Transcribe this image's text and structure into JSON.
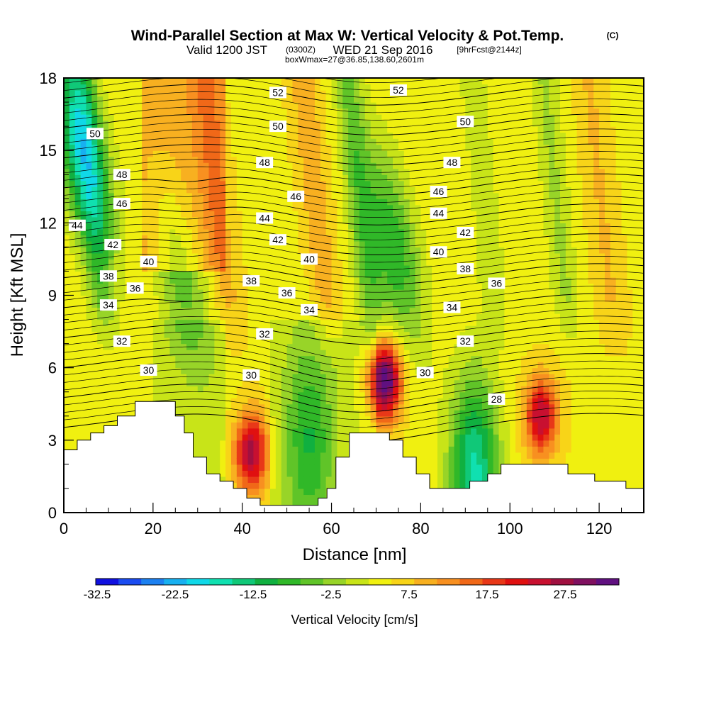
{
  "chart_data": {
    "type": "heatmap",
    "title": "Wind-Parallel Section at Max W: Vertical Velocity & Pot.Temp.",
    "title_mark": "(C)",
    "subtitle_valid": "Valid 1200 JST",
    "subtitle_utc": "(0300Z)",
    "subtitle_date": "WED 21 Sep 2016",
    "subtitle_fcst": "[9hrFcst@2144z]",
    "subtitle_box": "boxWmax=27@36.85,138.60,2601m",
    "xlabel": "Distance [nm]",
    "ylabel": "Height [Kft MSL]",
    "xlim": [
      0,
      130
    ],
    "ylim": [
      0,
      18
    ],
    "xticks": [
      "0",
      "20",
      "40",
      "60",
      "80",
      "100",
      "120"
    ],
    "yticks": [
      "0",
      "3",
      "6",
      "9",
      "12",
      "15",
      "18"
    ],
    "colorbar": {
      "label": "Vertical Velocity [cm/s]",
      "tick_labels": [
        "-32.5",
        "-22.5",
        "-12.5",
        "-2.5",
        "7.5",
        "17.5",
        "27.5"
      ],
      "colors": [
        "#1010e0",
        "#1a4cf0",
        "#1c80f0",
        "#18b0f0",
        "#10d8e8",
        "#10e0b0",
        "#10c878",
        "#10b040",
        "#30b828",
        "#60c428",
        "#98d428",
        "#c8e418",
        "#f0f010",
        "#f8d418",
        "#f8b020",
        "#f89020",
        "#f06818",
        "#e83818",
        "#e01010",
        "#c81030",
        "#a01040",
        "#801060",
        "#601080"
      ]
    },
    "vertical_velocity_features": [
      {
        "x": 4,
        "z": 15,
        "w": -20
      },
      {
        "x": 26,
        "z": 10,
        "w": -10
      },
      {
        "x": 42,
        "z": 2.5,
        "w": 24
      },
      {
        "x": 55,
        "z": 3,
        "w": -12
      },
      {
        "x": 72,
        "z": 5.5,
        "w": 32
      },
      {
        "x": 74,
        "z": 11,
        "w": -14
      },
      {
        "x": 92,
        "z": 1.5,
        "w": -22
      },
      {
        "x": 107,
        "z": 4,
        "w": 22
      }
    ],
    "theta_contours": [
      {
        "value": 28,
        "label": "28"
      },
      {
        "value": 30,
        "label": "30"
      },
      {
        "value": 32,
        "label": "32"
      },
      {
        "value": 34,
        "label": "34"
      },
      {
        "value": 36,
        "label": "36"
      },
      {
        "value": 38,
        "label": "38"
      },
      {
        "value": 40,
        "label": "40"
      },
      {
        "value": 42,
        "label": "42"
      },
      {
        "value": 44,
        "label": "44"
      },
      {
        "value": 46,
        "label": "46"
      },
      {
        "value": 48,
        "label": "48"
      },
      {
        "value": 50,
        "label": "50"
      },
      {
        "value": 52,
        "label": "52"
      }
    ],
    "contour_label_positions": [
      {
        "label": "52",
        "x": 48,
        "z": 17.4
      },
      {
        "label": "52",
        "x": 75,
        "z": 17.5
      },
      {
        "label": "50",
        "x": 7,
        "z": 15.7
      },
      {
        "label": "50",
        "x": 48,
        "z": 16.0
      },
      {
        "label": "50",
        "x": 90,
        "z": 16.2
      },
      {
        "label": "48",
        "x": 13,
        "z": 14.0
      },
      {
        "label": "48",
        "x": 45,
        "z": 14.5
      },
      {
        "label": "48",
        "x": 87,
        "z": 14.5
      },
      {
        "label": "46",
        "x": 13,
        "z": 12.8
      },
      {
        "label": "46",
        "x": 52,
        "z": 13.1
      },
      {
        "label": "46",
        "x": 84,
        "z": 13.3
      },
      {
        "label": "44",
        "x": 3,
        "z": 11.9
      },
      {
        "label": "44",
        "x": 45,
        "z": 12.2
      },
      {
        "label": "44",
        "x": 84,
        "z": 12.4
      },
      {
        "label": "42",
        "x": 11,
        "z": 11.1
      },
      {
        "label": "42",
        "x": 48,
        "z": 11.3
      },
      {
        "label": "42",
        "x": 90,
        "z": 11.6
      },
      {
        "label": "40",
        "x": 19,
        "z": 10.4
      },
      {
        "label": "40",
        "x": 55,
        "z": 10.5
      },
      {
        "label": "40",
        "x": 84,
        "z": 10.8
      },
      {
        "label": "38",
        "x": 10,
        "z": 9.8
      },
      {
        "label": "38",
        "x": 42,
        "z": 9.6
      },
      {
        "label": "38",
        "x": 90,
        "z": 10.1
      },
      {
        "label": "36",
        "x": 16,
        "z": 9.3
      },
      {
        "label": "36",
        "x": 50,
        "z": 9.1
      },
      {
        "label": "36",
        "x": 97,
        "z": 9.5
      },
      {
        "label": "34",
        "x": 10,
        "z": 8.6
      },
      {
        "label": "34",
        "x": 55,
        "z": 8.4
      },
      {
        "label": "34",
        "x": 87,
        "z": 8.5
      },
      {
        "label": "32",
        "x": 13,
        "z": 7.1
      },
      {
        "label": "32",
        "x": 45,
        "z": 7.4
      },
      {
        "label": "32",
        "x": 90,
        "z": 7.1
      },
      {
        "label": "30",
        "x": 19,
        "z": 5.9
      },
      {
        "label": "30",
        "x": 42,
        "z": 5.7
      },
      {
        "label": "30",
        "x": 81,
        "z": 5.8
      },
      {
        "label": "28",
        "x": 97,
        "z": 4.7
      }
    ],
    "terrain": [
      [
        0,
        2.6
      ],
      [
        3,
        2.6
      ],
      [
        3,
        3.0
      ],
      [
        6,
        3.0
      ],
      [
        6,
        3.3
      ],
      [
        9,
        3.3
      ],
      [
        9,
        3.6
      ],
      [
        12,
        3.6
      ],
      [
        12,
        4.0
      ],
      [
        16,
        4.0
      ],
      [
        16,
        4.6
      ],
      [
        25,
        4.6
      ],
      [
        25,
        4.0
      ],
      [
        27,
        4.0
      ],
      [
        27,
        3.3
      ],
      [
        29,
        3.3
      ],
      [
        29,
        2.3
      ],
      [
        32,
        2.3
      ],
      [
        32,
        1.6
      ],
      [
        35,
        1.6
      ],
      [
        35,
        1.3
      ],
      [
        38,
        1.3
      ],
      [
        38,
        1.0
      ],
      [
        41,
        1.0
      ],
      [
        41,
        0.6
      ],
      [
        44,
        0.6
      ],
      [
        44,
        0.3
      ],
      [
        57,
        0.3
      ],
      [
        57,
        0.6
      ],
      [
        59,
        0.6
      ],
      [
        59,
        1.0
      ],
      [
        61,
        1.0
      ],
      [
        61,
        2.3
      ],
      [
        64,
        2.3
      ],
      [
        64,
        3.3
      ],
      [
        73,
        3.3
      ],
      [
        73,
        3.0
      ],
      [
        76,
        3.0
      ],
      [
        76,
        2.3
      ],
      [
        79,
        2.3
      ],
      [
        79,
        1.6
      ],
      [
        82,
        1.6
      ],
      [
        82,
        1.0
      ],
      [
        91,
        1.0
      ],
      [
        91,
        1.3
      ],
      [
        95,
        1.3
      ],
      [
        95,
        1.6
      ],
      [
        98,
        1.6
      ],
      [
        98,
        2.0
      ],
      [
        113,
        2.0
      ],
      [
        113,
        1.6
      ],
      [
        119,
        1.6
      ],
      [
        119,
        1.3
      ],
      [
        126,
        1.3
      ],
      [
        126,
        1.0
      ],
      [
        130,
        1.0
      ]
    ]
  }
}
